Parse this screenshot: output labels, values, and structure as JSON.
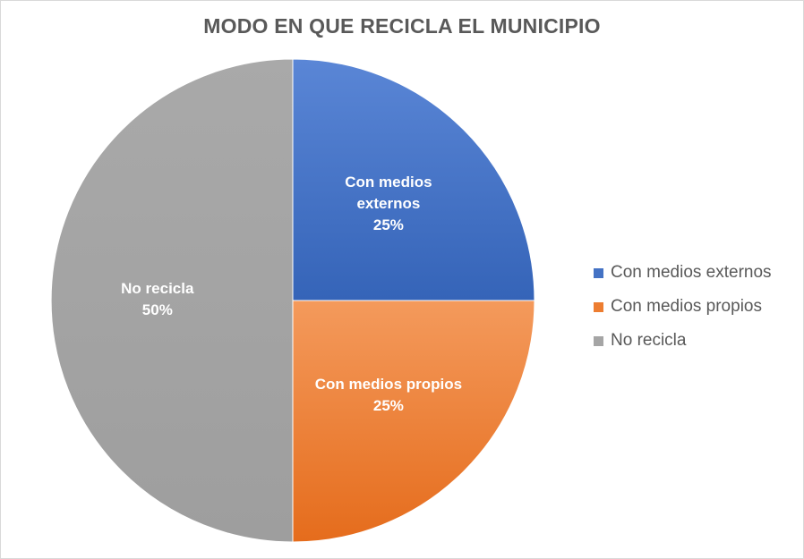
{
  "chart_data": {
    "type": "pie",
    "title": "MODO EN QUE RECICLA EL MUNICIPIO",
    "categories": [
      "Con medios externos",
      "Con medios propios",
      "No recicla"
    ],
    "values": [
      25,
      25,
      50
    ],
    "unit": "%",
    "data_labels": [
      [
        "Con medios",
        "externos",
        "25%"
      ],
      [
        "Con medios propios",
        "25%"
      ],
      [
        "No recicla",
        "50%"
      ]
    ],
    "colors": [
      "#4472c4",
      "#ed7d31",
      "#a5a5a5"
    ],
    "legend": {
      "position": "right",
      "entries": [
        "Con medios externos",
        "Con medios propios",
        "No recicla"
      ]
    }
  }
}
